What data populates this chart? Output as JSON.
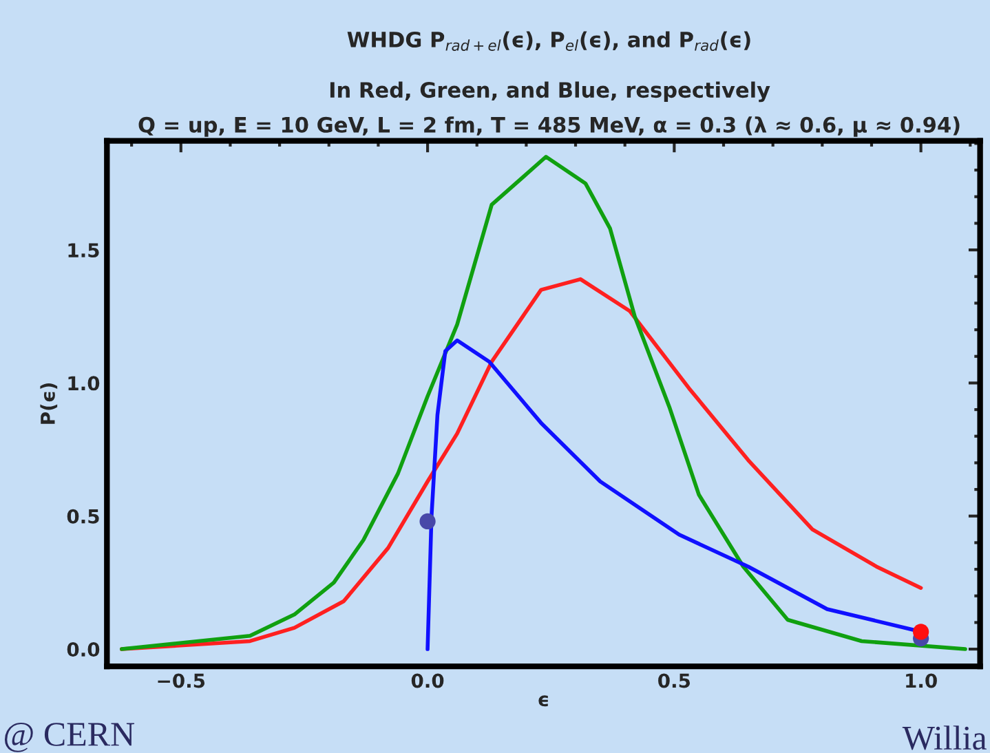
{
  "chart_data": {
    "type": "line",
    "title": "WHDG P$_{rad+el}$(ϵ), P$_{el}$(ϵ), and P$_{rad}$(ϵ)",
    "subtitle": "In Red, Green, and Blue, respectively\nQ = up, E = 10 GeV, L = 2 fm, T = 485 MeV, α = 0.3 (λ ≈ 0.6, μ ≈ 0.94)",
    "xlabel": "ϵ",
    "ylabel": "P(ϵ)",
    "xlim": [
      -0.65,
      1.12
    ],
    "ylim": [
      -0.065,
      1.91
    ],
    "xticks": [
      {
        "value": -0.5,
        "label": "−0.5"
      },
      {
        "value": 0,
        "label": "0.0"
      },
      {
        "value": 0.5,
        "label": "0.5"
      },
      {
        "value": 1.0,
        "label": "1.0"
      }
    ],
    "yticks": [
      {
        "value": 0,
        "label": "0.0"
      },
      {
        "value": 0.5,
        "label": "0.5"
      },
      {
        "value": 1.0,
        "label": "1.0"
      },
      {
        "value": 1.5,
        "label": "1.5"
      }
    ],
    "grid": false,
    "legend": false,
    "marker": "none",
    "line_style": "solid",
    "annotations": [
      "@ CERN",
      "Willia"
    ],
    "series": [
      {
        "color": "#ff2020",
        "x": [
          -0.62,
          -0.36,
          -0.27,
          -0.17,
          -0.08,
          0,
          0.06,
          0.13,
          0.23,
          0.31,
          0.41,
          0.53,
          0.65,
          0.78,
          0.91,
          1.0
        ],
        "values": [
          0,
          0.03,
          0.08,
          0.18,
          0.38,
          0.63,
          0.81,
          1.08,
          1.35,
          1.39,
          1.27,
          0.98,
          0.71,
          0.45,
          0.31,
          0.23
        ]
      },
      {
        "color": "#10a010",
        "x": [
          -0.62,
          -0.36,
          -0.27,
          -0.19,
          -0.13,
          -0.06,
          0,
          0.06,
          0.13,
          0.24,
          0.32,
          0.37,
          0.42,
          0.49,
          0.55,
          0.64,
          0.73,
          0.88,
          1.09
        ],
        "values": [
          0,
          0.05,
          0.13,
          0.25,
          0.41,
          0.66,
          0.95,
          1.22,
          1.67,
          1.85,
          1.75,
          1.58,
          1.25,
          0.91,
          0.58,
          0.31,
          0.11,
          0.03,
          0
        ]
      },
      {
        "color": "#1010ff",
        "x": [
          0,
          0.008,
          0.02,
          0.036,
          0.06,
          0.125,
          0.23,
          0.35,
          0.51,
          0.65,
          0.81,
          0.99
        ],
        "values": [
          0,
          0.5,
          0.88,
          1.12,
          1.16,
          1.08,
          0.85,
          0.63,
          0.43,
          0.31,
          0.15,
          0.07
        ]
      },
      {
        "type": "scatter",
        "marker": "circle",
        "color": "#4848a8",
        "x": [
          0,
          1.0
        ],
        "values": [
          0.48,
          0.04
        ]
      },
      {
        "type": "scatter",
        "marker": "circle",
        "color": "#ff1010",
        "x": [
          1.0
        ],
        "values": [
          0.065
        ]
      }
    ]
  }
}
